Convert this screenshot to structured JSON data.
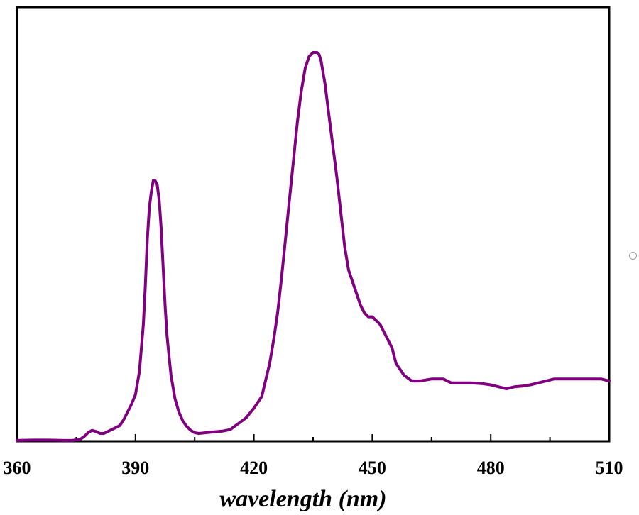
{
  "chart_data": {
    "type": "line",
    "title": "",
    "xlabel": "wavelength (nm)",
    "ylabel": "",
    "xlim": [
      360,
      510
    ],
    "ylim": [
      0,
      1.0
    ],
    "x_ticks": [
      "360",
      "390",
      "420",
      "450",
      "480",
      "510"
    ],
    "y_ticks_labeled": false,
    "grid": false,
    "legend": "none",
    "series": [
      {
        "color": "#800080",
        "x": [
          360,
          364,
          368,
          372,
          374,
          376,
          377,
          378,
          379,
          380,
          381,
          382,
          383,
          384,
          385,
          386,
          387,
          388,
          389,
          390,
          391,
          392,
          392.5,
          393,
          393.5,
          394,
          394.5,
          395,
          395.5,
          396,
          396.5,
          397,
          397.5,
          398,
          399,
          400,
          401,
          402,
          403,
          404,
          405,
          406,
          407,
          408,
          410,
          412,
          414,
          416,
          418,
          420,
          422,
          424,
          425,
          426,
          427,
          428,
          429,
          430,
          431,
          432,
          433,
          434,
          435,
          435.5,
          436,
          436.5,
          437,
          438,
          439,
          440,
          441,
          442,
          443,
          444,
          445,
          446,
          447,
          448,
          449,
          450,
          451,
          452,
          453,
          454,
          455,
          456,
          458,
          460,
          462,
          465,
          468,
          470,
          472,
          475,
          478,
          480,
          482,
          484,
          486,
          488,
          490,
          492,
          494,
          496,
          500,
          505,
          508,
          510
        ],
        "y": [
          0.002,
          0.003,
          0.003,
          0.002,
          0.002,
          0.005,
          0.012,
          0.022,
          0.028,
          0.025,
          0.02,
          0.02,
          0.025,
          0.03,
          0.035,
          0.04,
          0.055,
          0.075,
          0.095,
          0.12,
          0.18,
          0.3,
          0.4,
          0.52,
          0.6,
          0.64,
          0.67,
          0.67,
          0.66,
          0.62,
          0.55,
          0.45,
          0.35,
          0.27,
          0.17,
          0.11,
          0.075,
          0.052,
          0.038,
          0.028,
          0.022,
          0.02,
          0.021,
          0.022,
          0.024,
          0.026,
          0.03,
          0.045,
          0.06,
          0.085,
          0.115,
          0.2,
          0.26,
          0.33,
          0.42,
          0.52,
          0.62,
          0.72,
          0.82,
          0.9,
          0.96,
          0.99,
          1.0,
          1.0,
          1.0,
          0.995,
          0.98,
          0.92,
          0.84,
          0.76,
          0.68,
          0.59,
          0.5,
          0.44,
          0.41,
          0.38,
          0.35,
          0.33,
          0.32,
          0.32,
          0.31,
          0.3,
          0.28,
          0.26,
          0.24,
          0.2,
          0.17,
          0.155,
          0.155,
          0.16,
          0.16,
          0.15,
          0.15,
          0.15,
          0.148,
          0.145,
          0.14,
          0.135,
          0.14,
          0.142,
          0.145,
          0.15,
          0.155,
          0.16,
          0.16,
          0.16,
          0.16,
          0.155
        ]
      }
    ]
  }
}
